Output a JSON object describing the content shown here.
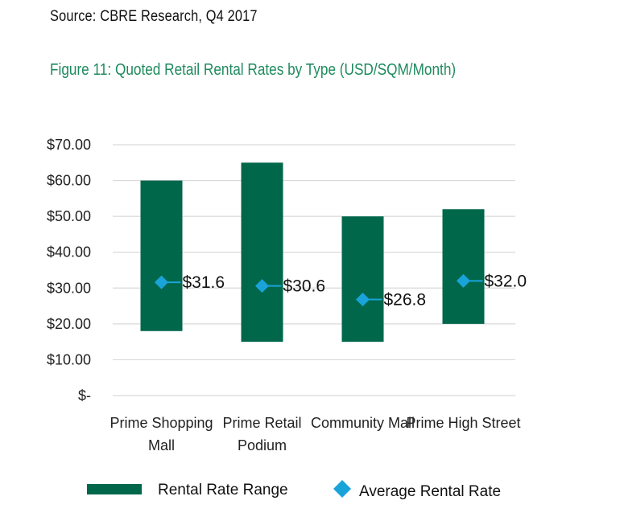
{
  "source": "Source: CBRE Research, Q4 2017",
  "title": "Figure 11: Quoted Retail Rental Rates by Type (USD/SQM/Month)",
  "colors": {
    "range": "#00674a",
    "average": "#1aa3d9",
    "title": "#1f8a5e",
    "grid": "#d9d9d9"
  },
  "chart_data": {
    "type": "bar",
    "categories": [
      [
        "Prime Shopping",
        "Mall"
      ],
      [
        "Prime Retail",
        "Podium"
      ],
      [
        "Community Mall"
      ],
      [
        "Prime High Street"
      ]
    ],
    "series": [
      {
        "name": "Rental Rate Range",
        "low": [
          18,
          15,
          15,
          20
        ],
        "high": [
          60,
          65,
          50,
          52
        ]
      },
      {
        "name": "Average Rental Rate",
        "values": [
          31.6,
          30.6,
          26.8,
          32.0
        ],
        "labels": [
          "$31.6",
          "$30.6",
          "$26.8",
          "$32.0"
        ]
      }
    ],
    "y_ticks": [
      0,
      10,
      20,
      30,
      40,
      50,
      60,
      70
    ],
    "y_tick_labels": [
      "$-",
      "$10.00",
      "$20.00",
      "$30.00",
      "$40.00",
      "$50.00",
      "$60.00",
      "$70.00"
    ],
    "ylim": [
      0,
      70
    ],
    "grid": true,
    "legend": {
      "position": "bottom",
      "items": [
        "Rental Rate Range",
        "Average Rental Rate"
      ]
    }
  }
}
